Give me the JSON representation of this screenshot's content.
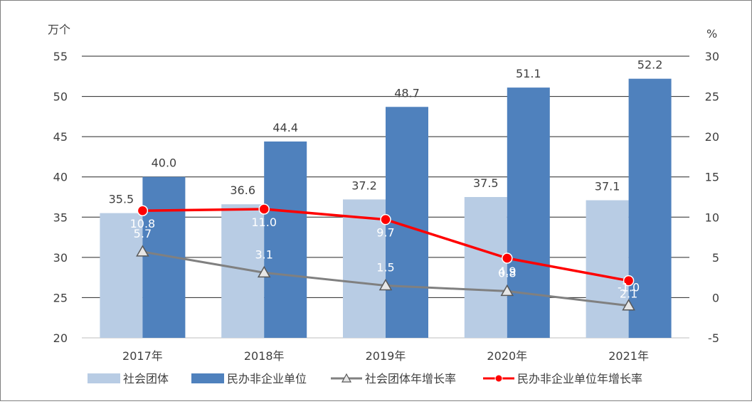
{
  "chart_data": {
    "type": "bar",
    "categories": [
      "2017年",
      "2018年",
      "2019年",
      "2020年",
      "2021年"
    ],
    "left_axis": {
      "unit": "万个",
      "ylim": [
        20,
        55
      ],
      "ticks": [
        "20",
        "25",
        "30",
        "35",
        "40",
        "45",
        "50",
        "55"
      ]
    },
    "right_axis": {
      "unit": "%",
      "ylim": [
        -5,
        30
      ],
      "ticks": [
        "-5",
        "0",
        "5",
        "10",
        "15",
        "20",
        "25",
        "30"
      ]
    },
    "series": [
      {
        "name": "社会团体",
        "kind": "bar",
        "axis": "left",
        "color": "#b8cce4",
        "values": [
          35.5,
          36.6,
          37.2,
          37.5,
          37.1
        ],
        "labels": [
          "35.5",
          "36.6",
          "37.2",
          "37.5",
          "37.1"
        ]
      },
      {
        "name": "民办非企业单位",
        "kind": "bar",
        "axis": "left",
        "color": "#4f81bd",
        "values": [
          40.0,
          44.4,
          48.7,
          51.1,
          52.2
        ],
        "labels": [
          "40.0",
          "44.4",
          "48.7",
          "51.1",
          "52.2"
        ]
      },
      {
        "name": "社会团体年增长率",
        "kind": "line",
        "axis": "right",
        "color": "#808080",
        "marker": "triangle",
        "values": [
          5.7,
          3.1,
          1.5,
          0.8,
          -1.0
        ],
        "labels": [
          "5.7",
          "3.1",
          "1.5",
          "0.8",
          "-1.0"
        ]
      },
      {
        "name": "民办非企业单位年增长率",
        "kind": "line",
        "axis": "right",
        "color": "#ff0000",
        "marker": "circle",
        "values": [
          10.8,
          11.0,
          9.7,
          4.9,
          2.1
        ],
        "labels": [
          "10.8",
          "11.0",
          "9.7",
          "4.9",
          "2.1"
        ]
      }
    ],
    "grid": true,
    "legend_position": "bottom"
  }
}
